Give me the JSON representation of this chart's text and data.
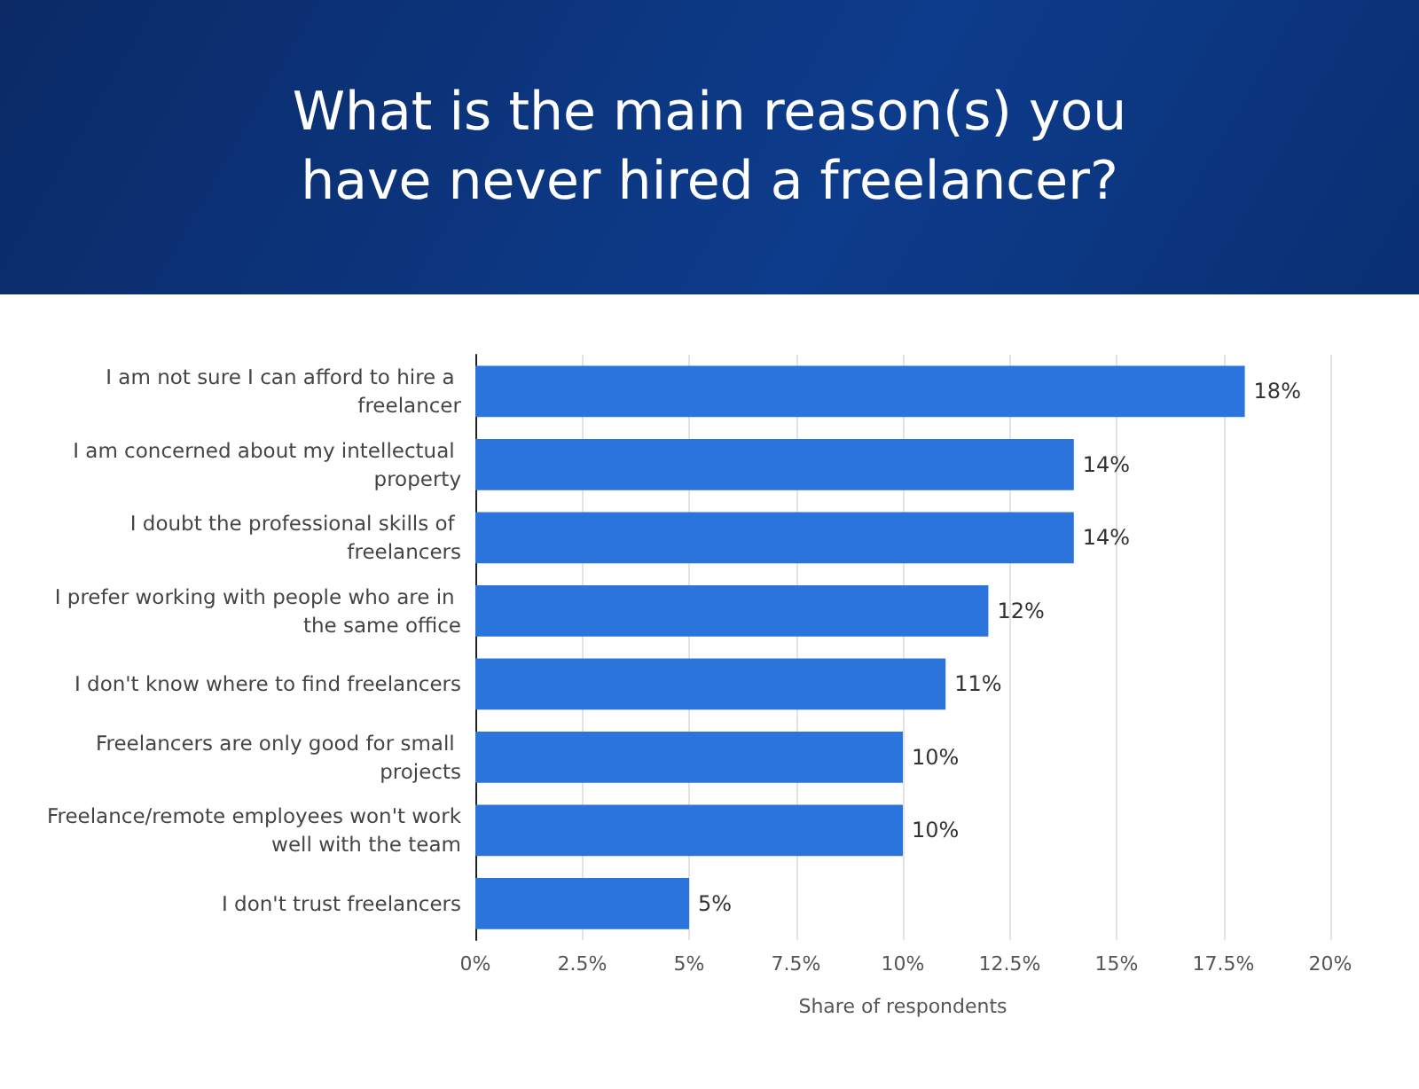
{
  "chart_data": {
    "type": "bar",
    "orientation": "horizontal",
    "title": "What is the main reason(s) you have never hired a freelancer?",
    "xlabel": "Share of respondents",
    "categories": [
      "I am not sure I can afford to hire a freelancer",
      "I am concerned about my intellectual property",
      "I doubt the professional skills of freelancers",
      "I prefer working with people who are in the same office",
      "I don't know where to find freelancers",
      "Freelancers are only good for small projects",
      "Freelance/remote employees won't work well with the team",
      "I don't trust freelancers"
    ],
    "values": [
      18,
      14,
      14,
      12,
      11,
      10,
      10,
      5
    ],
    "value_labels": [
      "18%",
      "14%",
      "14%",
      "12%",
      "11%",
      "10%",
      "10%",
      "5%"
    ],
    "color": "#2a74db",
    "xlim": [
      0,
      20
    ],
    "xticks": [
      {
        "value": 0,
        "label": "0%"
      },
      {
        "value": 2.5,
        "label": "2.5%"
      },
      {
        "value": 5,
        "label": "5%"
      },
      {
        "value": 7.5,
        "label": "7.5%"
      },
      {
        "value": 10,
        "label": "10%"
      },
      {
        "value": 12.5,
        "label": "12.5%"
      },
      {
        "value": 15,
        "label": "15%"
      },
      {
        "value": 17.5,
        "label": "17.5%"
      },
      {
        "value": 20,
        "label": "20%"
      }
    ],
    "grid": "x"
  }
}
